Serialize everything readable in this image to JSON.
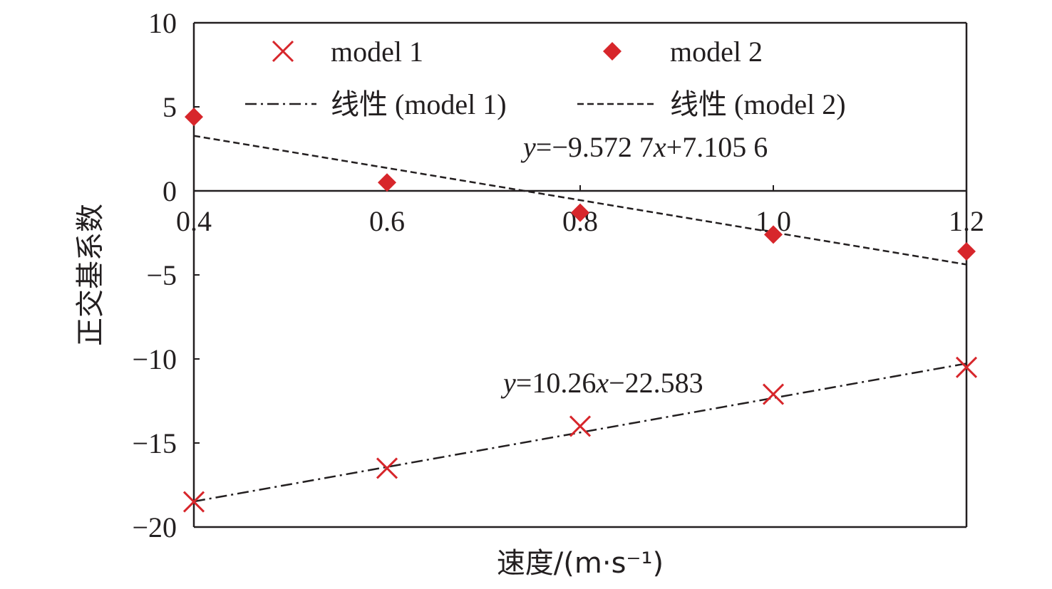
{
  "chart_data": {
    "type": "scatter",
    "xlabel": "速度/(m·s⁻¹)",
    "ylabel": "正交基系数",
    "xlim": [
      0.4,
      1.2
    ],
    "ylim": [
      -20,
      10
    ],
    "x_ticks": [
      "0.4",
      "0.6",
      "0.8",
      "1.0",
      "1.2"
    ],
    "y_ticks": [
      "10",
      "5",
      "0",
      "−5",
      "−10",
      "−15",
      "−20"
    ],
    "x": [
      0.4,
      0.6,
      0.8,
      1.0,
      1.2
    ],
    "grid": false,
    "legend_placement": "top",
    "series": [
      {
        "name": "model 1",
        "marker": "x",
        "color": "#d7262b",
        "values": [
          -18.5,
          -16.5,
          -14.0,
          -12.1,
          -10.5
        ]
      },
      {
        "name": "model 2",
        "marker": "diamond",
        "color": "#d7262b",
        "values": [
          4.4,
          0.5,
          -1.3,
          -2.6,
          -3.6
        ]
      }
    ],
    "trendlines": [
      {
        "name": "线性 (model 1)",
        "slope": 10.26,
        "intercept": -22.583,
        "style": "dash-dot",
        "equation": "y=10.26x−22.583"
      },
      {
        "name": "线性 (model 2)",
        "slope": -9.5727,
        "intercept": 7.1056,
        "style": "dashed",
        "equation": "y=−9.572 7x+7.105 6"
      }
    ]
  }
}
